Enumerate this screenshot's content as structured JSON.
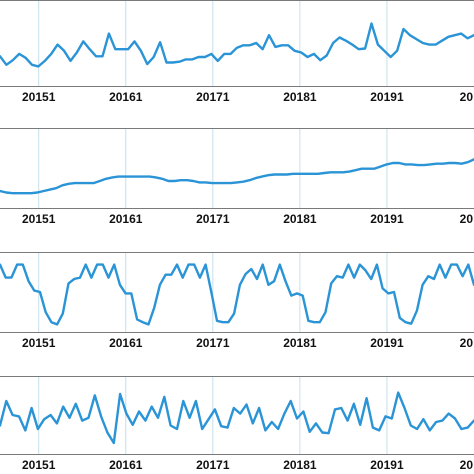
{
  "chart_data": [
    {
      "type": "line",
      "tick_labels": [
        "20151",
        "20161",
        "20171",
        "20181",
        "20191",
        "20"
      ],
      "x_ticks": [
        4,
        13,
        22,
        31,
        40,
        49
      ],
      "x_range": [
        0,
        49
      ],
      "y_range": [
        0,
        100
      ],
      "grid": "vertical",
      "series": [
        {
          "values": [
            33,
            22,
            28,
            36,
            31,
            22,
            20,
            27,
            36,
            48,
            40,
            27,
            38,
            52,
            42,
            33,
            33,
            62,
            42,
            42,
            42,
            52,
            40,
            23,
            32,
            51,
            25,
            25,
            26,
            29,
            29,
            32,
            32,
            36,
            27,
            36,
            36,
            44,
            47,
            47,
            50,
            42,
            60,
            45,
            47,
            47,
            40,
            38,
            32,
            36,
            28,
            34,
            50,
            57,
            53,
            48,
            42,
            43,
            75,
            48,
            40,
            32,
            40,
            68,
            60,
            55,
            50,
            48,
            48,
            53,
            58,
            60,
            62,
            56,
            60
          ]
        }
      ]
    },
    {
      "type": "line",
      "tick_labels": [
        "20151",
        "20161",
        "20171",
        "20181",
        "20191",
        "20"
      ],
      "x_ticks": [
        4,
        13,
        22,
        31,
        40,
        49
      ],
      "x_range": [
        0,
        49
      ],
      "y_range": [
        0,
        100
      ],
      "grid": "vertical",
      "series": [
        {
          "values": [
            18,
            16,
            15,
            15,
            15,
            15,
            16,
            18,
            20,
            22,
            26,
            28,
            29,
            29,
            29,
            29,
            32,
            35,
            37,
            38,
            38,
            38,
            38,
            38,
            38,
            37,
            35,
            32,
            32,
            33,
            33,
            32,
            30,
            30,
            29,
            29,
            29,
            29,
            30,
            31,
            33,
            36,
            38,
            40,
            41,
            41,
            41,
            42,
            42,
            42,
            42,
            42,
            43,
            44,
            44,
            44,
            45,
            47,
            49,
            49,
            49,
            52,
            55,
            57,
            57,
            55,
            55,
            54,
            54,
            55,
            56,
            56,
            57,
            57,
            56,
            58,
            62
          ]
        }
      ]
    },
    {
      "type": "line",
      "tick_labels": [
        "20151",
        "20161",
        "20171",
        "20181",
        "20191",
        "20"
      ],
      "x_ticks": [
        4,
        13,
        22,
        31,
        40,
        49
      ],
      "x_range": [
        0,
        49
      ],
      "y_range": [
        0,
        100
      ],
      "grid": "vertical",
      "series": [
        {
          "values": [
            88,
            70,
            70,
            88,
            88,
            65,
            52,
            50,
            22,
            8,
            5,
            20,
            62,
            68,
            70,
            88,
            70,
            88,
            88,
            70,
            88,
            60,
            48,
            48,
            12,
            8,
            5,
            28,
            60,
            74,
            74,
            88,
            70,
            88,
            88,
            70,
            88,
            50,
            10,
            8,
            8,
            20,
            60,
            75,
            82,
            68,
            88,
            60,
            65,
            88,
            65,
            45,
            48,
            45,
            10,
            8,
            8,
            22,
            62,
            72,
            70,
            88,
            70,
            88,
            80,
            68,
            88,
            55,
            48,
            50,
            14,
            8,
            6,
            24,
            60,
            72,
            68,
            88,
            70,
            88,
            88,
            72,
            88,
            60
          ]
        }
      ]
    },
    {
      "type": "line",
      "tick_labels": [
        "20151",
        "20161",
        "20171",
        "20181",
        "20191",
        "20"
      ],
      "x_ticks": [
        4,
        13,
        22,
        31,
        40,
        49
      ],
      "x_range": [
        0,
        49
      ],
      "y_range": [
        0,
        100
      ],
      "grid": "vertical",
      "series": [
        {
          "values": [
            35,
            70,
            50,
            48,
            28,
            60,
            30,
            44,
            50,
            38,
            62,
            46,
            66,
            42,
            46,
            78,
            48,
            25,
            10,
            80,
            52,
            36,
            55,
            42,
            62,
            46,
            76,
            35,
            30,
            70,
            46,
            70,
            30,
            44,
            58,
            34,
            32,
            60,
            52,
            65,
            38,
            60,
            28,
            40,
            30,
            52,
            70,
            45,
            55,
            26,
            38,
            25,
            24,
            58,
            60,
            42,
            66,
            36,
            74,
            32,
            28,
            48,
            45,
            82,
            60,
            35,
            30,
            44,
            28,
            40,
            42,
            52,
            45,
            30,
            32,
            42
          ]
        }
      ]
    }
  ]
}
